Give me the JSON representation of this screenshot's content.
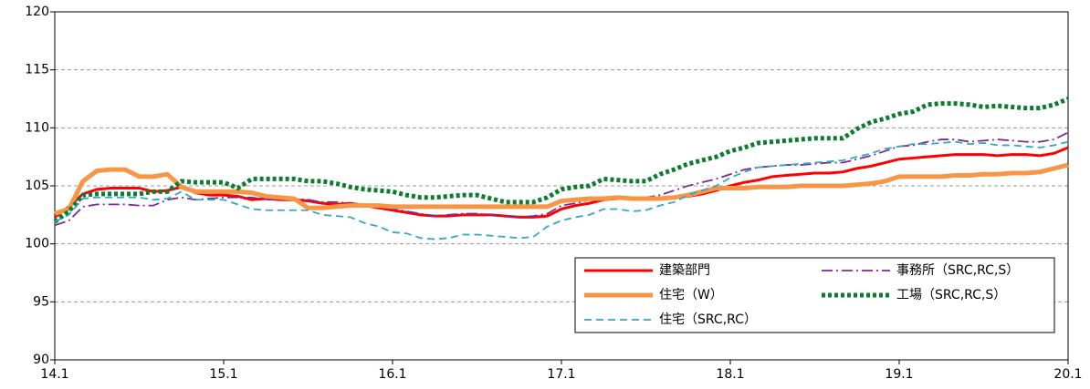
{
  "chart_data": {
    "type": "line",
    "categories": [
      "14.1",
      null,
      null,
      null,
      null,
      null,
      null,
      null,
      null,
      null,
      null,
      null,
      "15.1",
      null,
      null,
      null,
      null,
      null,
      null,
      null,
      null,
      null,
      null,
      null,
      "16.1",
      null,
      null,
      null,
      null,
      null,
      null,
      null,
      null,
      null,
      null,
      null,
      "17.1",
      null,
      null,
      null,
      null,
      null,
      null,
      null,
      null,
      null,
      null,
      null,
      "18.1",
      null,
      null,
      null,
      null,
      null,
      null,
      null,
      null,
      null,
      null,
      null,
      "19.1",
      null,
      null,
      null,
      null,
      null,
      null,
      null,
      null,
      null,
      null,
      null,
      "20.1"
    ],
    "ylim": [
      90,
      120
    ],
    "yticks": [
      90,
      95,
      100,
      105,
      110,
      115,
      120
    ],
    "grid": true,
    "series": [
      {
        "name": "建築部門",
        "color": "#ff0000",
        "style": "solid",
        "values": [
          102.3,
          103.2,
          104.3,
          104.7,
          104.8,
          104.8,
          104.8,
          104.5,
          104.6,
          104.9,
          104.4,
          104.2,
          104.2,
          104.1,
          103.8,
          103.9,
          103.8,
          103.8,
          103.7,
          103.5,
          103.4,
          103.5,
          103.3,
          103.1,
          102.9,
          102.7,
          102.5,
          102.4,
          102.4,
          102.5,
          102.5,
          102.5,
          102.4,
          102.3,
          102.3,
          102.4,
          103.0,
          103.3,
          103.5,
          103.8,
          103.9,
          103.9,
          103.9,
          103.9,
          104.0,
          104.1,
          104.3,
          104.6,
          105.0,
          105.3,
          105.5,
          105.8,
          105.9,
          106.0,
          106.1,
          106.1,
          106.2,
          106.5,
          106.7,
          107.0,
          107.3,
          107.4,
          107.5,
          107.6,
          107.7,
          107.7,
          107.7,
          107.6,
          107.7,
          107.7,
          107.6,
          107.8,
          108.3
        ]
      },
      {
        "name": "事務所（SRC,RC,S）",
        "color": "#7b2c8f",
        "style": "dashdot",
        "values": [
          101.6,
          102.0,
          103.2,
          103.4,
          103.4,
          103.4,
          103.3,
          103.3,
          103.8,
          104.0,
          103.8,
          103.9,
          104.0,
          104.0,
          104.0,
          103.8,
          103.9,
          103.9,
          103.8,
          103.6,
          103.6,
          103.5,
          103.4,
          103.2,
          103.0,
          102.8,
          102.6,
          102.4,
          102.5,
          102.6,
          102.6,
          102.5,
          102.4,
          102.3,
          102.4,
          102.6,
          103.3,
          103.5,
          103.8,
          104.0,
          104.0,
          104.0,
          104.0,
          104.2,
          104.6,
          105.0,
          105.3,
          105.6,
          106.0,
          106.4,
          106.6,
          106.7,
          106.8,
          106.8,
          106.9,
          107.0,
          107.0,
          107.3,
          107.6,
          108.0,
          108.4,
          108.5,
          108.8,
          109.0,
          109.0,
          108.8,
          108.9,
          109.0,
          108.9,
          108.8,
          108.8,
          109.0,
          109.6
        ]
      },
      {
        "name": "住宅（W）",
        "color": "#f79646",
        "style": "thick",
        "values": [
          102.6,
          103.0,
          105.4,
          106.3,
          106.4,
          106.4,
          105.8,
          105.8,
          106.0,
          104.9,
          104.5,
          104.5,
          104.5,
          104.5,
          104.4,
          104.1,
          104.0,
          103.9,
          103.1,
          103.1,
          103.2,
          103.3,
          103.3,
          103.3,
          103.2,
          103.2,
          103.2,
          103.2,
          103.2,
          103.2,
          103.2,
          103.2,
          103.2,
          103.2,
          103.2,
          103.2,
          103.7,
          103.8,
          103.9,
          103.9,
          104.0,
          103.9,
          103.9,
          103.9,
          104.0,
          104.2,
          104.5,
          104.8,
          104.8,
          104.8,
          104.9,
          104.9,
          104.9,
          105.0,
          105.0,
          105.0,
          105.0,
          105.1,
          105.2,
          105.4,
          105.8,
          105.8,
          105.8,
          105.8,
          105.9,
          105.9,
          106.0,
          106.0,
          106.1,
          106.1,
          106.2,
          106.5,
          106.8
        ]
      },
      {
        "name": "工場（SRC,RC,S）",
        "color": "#0e7c2f",
        "style": "dot",
        "values": [
          101.9,
          102.8,
          104.2,
          104.3,
          104.3,
          104.3,
          104.3,
          104.5,
          104.5,
          105.4,
          105.3,
          105.3,
          105.3,
          104.8,
          105.6,
          105.6,
          105.6,
          105.6,
          105.4,
          105.4,
          105.2,
          104.9,
          104.7,
          104.6,
          104.5,
          104.2,
          104.0,
          104.0,
          104.1,
          104.2,
          104.2,
          103.9,
          103.6,
          103.6,
          103.6,
          104.0,
          104.7,
          104.9,
          105.0,
          105.6,
          105.5,
          105.4,
          105.4,
          106.0,
          106.4,
          106.9,
          107.2,
          107.5,
          108.0,
          108.3,
          108.7,
          108.8,
          108.9,
          109.0,
          109.1,
          109.1,
          109.1,
          109.9,
          110.5,
          110.8,
          111.2,
          111.4,
          112.0,
          112.1,
          112.1,
          112.0,
          111.8,
          111.9,
          111.8,
          111.7,
          111.7,
          112.0,
          112.5
        ]
      },
      {
        "name": "住宅（SRC,RC）",
        "color": "#31a8c8",
        "style": "dash",
        "values": [
          101.9,
          102.5,
          103.9,
          104.0,
          104.0,
          104.0,
          104.0,
          103.8,
          103.9,
          104.5,
          103.8,
          103.8,
          103.8,
          103.4,
          103.0,
          102.9,
          102.9,
          102.9,
          102.9,
          102.5,
          102.4,
          102.3,
          101.8,
          101.5,
          101.0,
          100.9,
          100.5,
          100.4,
          100.5,
          100.8,
          100.8,
          100.7,
          100.6,
          100.5,
          100.6,
          101.5,
          102.0,
          102.3,
          102.5,
          103.0,
          103.0,
          102.8,
          102.9,
          103.3,
          103.6,
          104.2,
          104.6,
          105.0,
          105.7,
          106.2,
          106.6,
          106.7,
          106.8,
          106.9,
          107.0,
          107.1,
          107.2,
          107.5,
          107.8,
          108.2,
          108.4,
          108.6,
          108.6,
          108.7,
          108.8,
          108.6,
          108.7,
          108.5,
          108.5,
          108.4,
          108.3,
          108.5,
          108.8
        ]
      }
    ]
  }
}
